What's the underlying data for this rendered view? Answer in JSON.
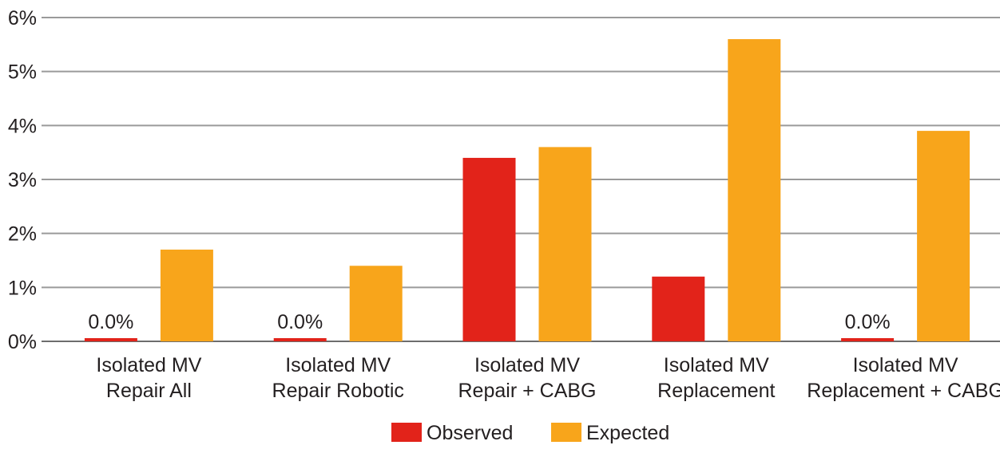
{
  "chart_data": {
    "type": "bar",
    "categories": [
      [
        "Isolated MV",
        "Repair All"
      ],
      [
        "Isolated MV",
        "Repair Robotic"
      ],
      [
        "Isolated MV",
        "Repair + CABG"
      ],
      [
        "Isolated MV",
        "Replacement"
      ],
      [
        "Isolated MV",
        "Replacement + CABG"
      ]
    ],
    "series": [
      {
        "name": "Observed",
        "color": "#e2231a",
        "values": [
          0.0,
          0.0,
          3.4,
          1.2,
          0.0
        ]
      },
      {
        "name": "Expected",
        "color": "#f8a51b",
        "values": [
          1.7,
          1.4,
          3.6,
          5.6,
          3.9
        ]
      }
    ],
    "data_labels": [
      {
        "series": 0,
        "category": 0,
        "text": "0.0%"
      },
      {
        "series": 0,
        "category": 1,
        "text": "0.0%"
      },
      {
        "series": 0,
        "category": 4,
        "text": "0.0%"
      }
    ],
    "yticks": [
      0,
      1,
      2,
      3,
      4,
      5,
      6
    ],
    "ytick_labels": [
      "0%",
      "1%",
      "2%",
      "3%",
      "4%",
      "5%",
      "6%"
    ],
    "ylim": [
      0,
      6
    ],
    "grid": true,
    "legend_position": "bottom-center",
    "title": "",
    "xlabel": "",
    "ylabel": ""
  }
}
